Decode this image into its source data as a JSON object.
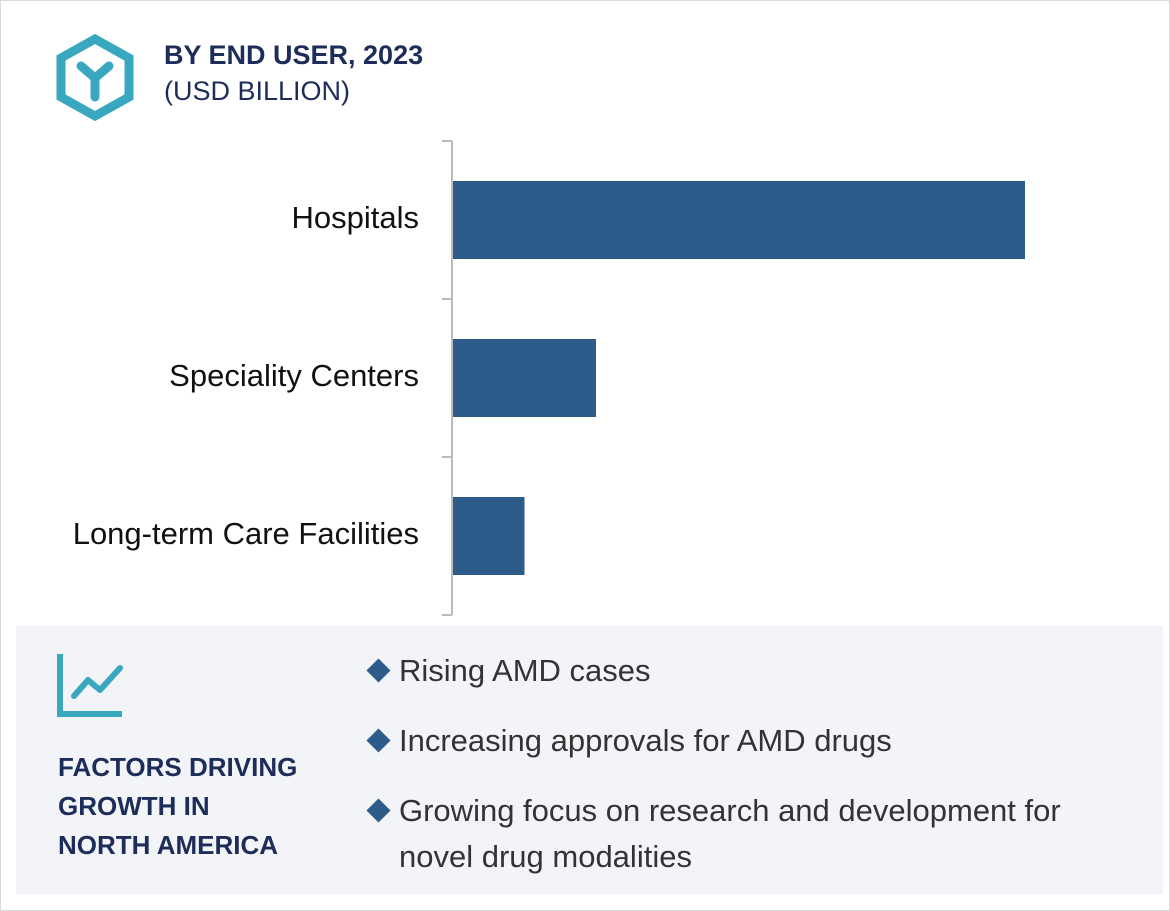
{
  "chart_data": {
    "type": "bar",
    "orientation": "horizontal",
    "title": "BY END USER, 2023",
    "subtitle": "(USD BILLION)",
    "categories": [
      "Hospitals",
      "Speciality Centers",
      "Long-term Care Facilities"
    ],
    "values": [
      8,
      2,
      1
    ],
    "color": "#2e5c8a",
    "xlim": [
      0,
      8
    ]
  },
  "factors": {
    "heading": [
      "FACTORS DRIVING",
      "GROWTH IN",
      "NORTH AMERICA"
    ],
    "items": [
      "Rising AMD cases",
      "Increasing approvals for AMD drugs",
      "Growing focus on research and development for novel drug modalities"
    ]
  }
}
